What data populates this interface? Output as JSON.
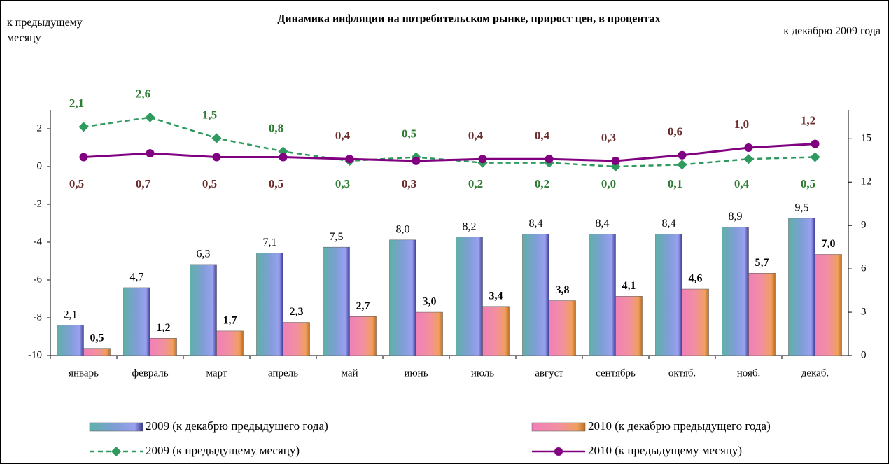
{
  "chart_data": {
    "type": "bar-line",
    "title": "Динамика инфляции на потребительском рынке, прирост цен, в процентах",
    "ylabel": "к предыдущему месяцу",
    "y2label": "к декабрю 2009 года",
    "categories": [
      "январь",
      "февраль",
      "март",
      "апрель",
      "май",
      "июнь",
      "июль",
      "август",
      "сентябрь",
      "октяб.",
      "нояб.",
      "декаб."
    ],
    "ylim": [
      -10,
      3
    ],
    "yticks": [
      -10,
      -8,
      -6,
      -4,
      -2,
      0,
      2
    ],
    "y2lim": [
      0,
      17
    ],
    "y2ticks": [
      0,
      3,
      6,
      9,
      12,
      15
    ],
    "series": [
      {
        "name": "2009 (к декабрю предыдущего года)",
        "type": "bar",
        "axis": "y2",
        "color": "#7f9ed6",
        "values": [
          2.1,
          4.7,
          6.3,
          7.1,
          7.5,
          8.0,
          8.2,
          8.4,
          8.4,
          8.4,
          8.9,
          9.5
        ],
        "value_labels": [
          "2,1",
          "4,7",
          "6,3",
          "7,1",
          "7,5",
          "8,0",
          "8,2",
          "8,4",
          "8,4",
          "8,4",
          "8,9",
          "9,5"
        ]
      },
      {
        "name": "2010 (к декабрю предыдущего года)",
        "type": "bar",
        "axis": "y2",
        "color": "#f28fa0",
        "values": [
          0.5,
          1.2,
          1.7,
          2.3,
          2.7,
          3.0,
          3.4,
          3.8,
          4.1,
          4.6,
          5.7,
          7.0
        ],
        "value_labels": [
          "0,5",
          "1,2",
          "1,7",
          "2,3",
          "2,7",
          "3,0",
          "3,4",
          "3,8",
          "4,1",
          "4,6",
          "5,7",
          "7,0"
        ]
      },
      {
        "name": "2009 (к предыдущему месяцу)",
        "type": "line",
        "dashed": true,
        "color": "#2e9a5e",
        "label_color": "#2e7d32",
        "values": [
          2.1,
          2.6,
          1.5,
          0.8,
          0.3,
          0.5,
          0.2,
          0.2,
          0.0,
          0.1,
          0.4,
          0.5
        ],
        "value_labels": [
          "2,1",
          "2,6",
          "1,5",
          "0,8",
          "0,3",
          "0,5",
          "0,2",
          "0,2",
          "0,0",
          "0,1",
          "0,4",
          "0,5"
        ]
      },
      {
        "name": "2010 (к предыдущему месяцу)",
        "type": "line",
        "dashed": false,
        "color": "#800080",
        "label_color": "#6b2c2c",
        "values": [
          0.5,
          0.7,
          0.5,
          0.5,
          0.4,
          0.3,
          0.4,
          0.4,
          0.3,
          0.6,
          1.0,
          1.2
        ],
        "value_labels": [
          "0,5",
          "0,7",
          "0,5",
          "0,5",
          "0,4",
          "0,3",
          "0,4",
          "0,4",
          "0,3",
          "0,6",
          "1,0",
          "1,2"
        ]
      }
    ]
  }
}
